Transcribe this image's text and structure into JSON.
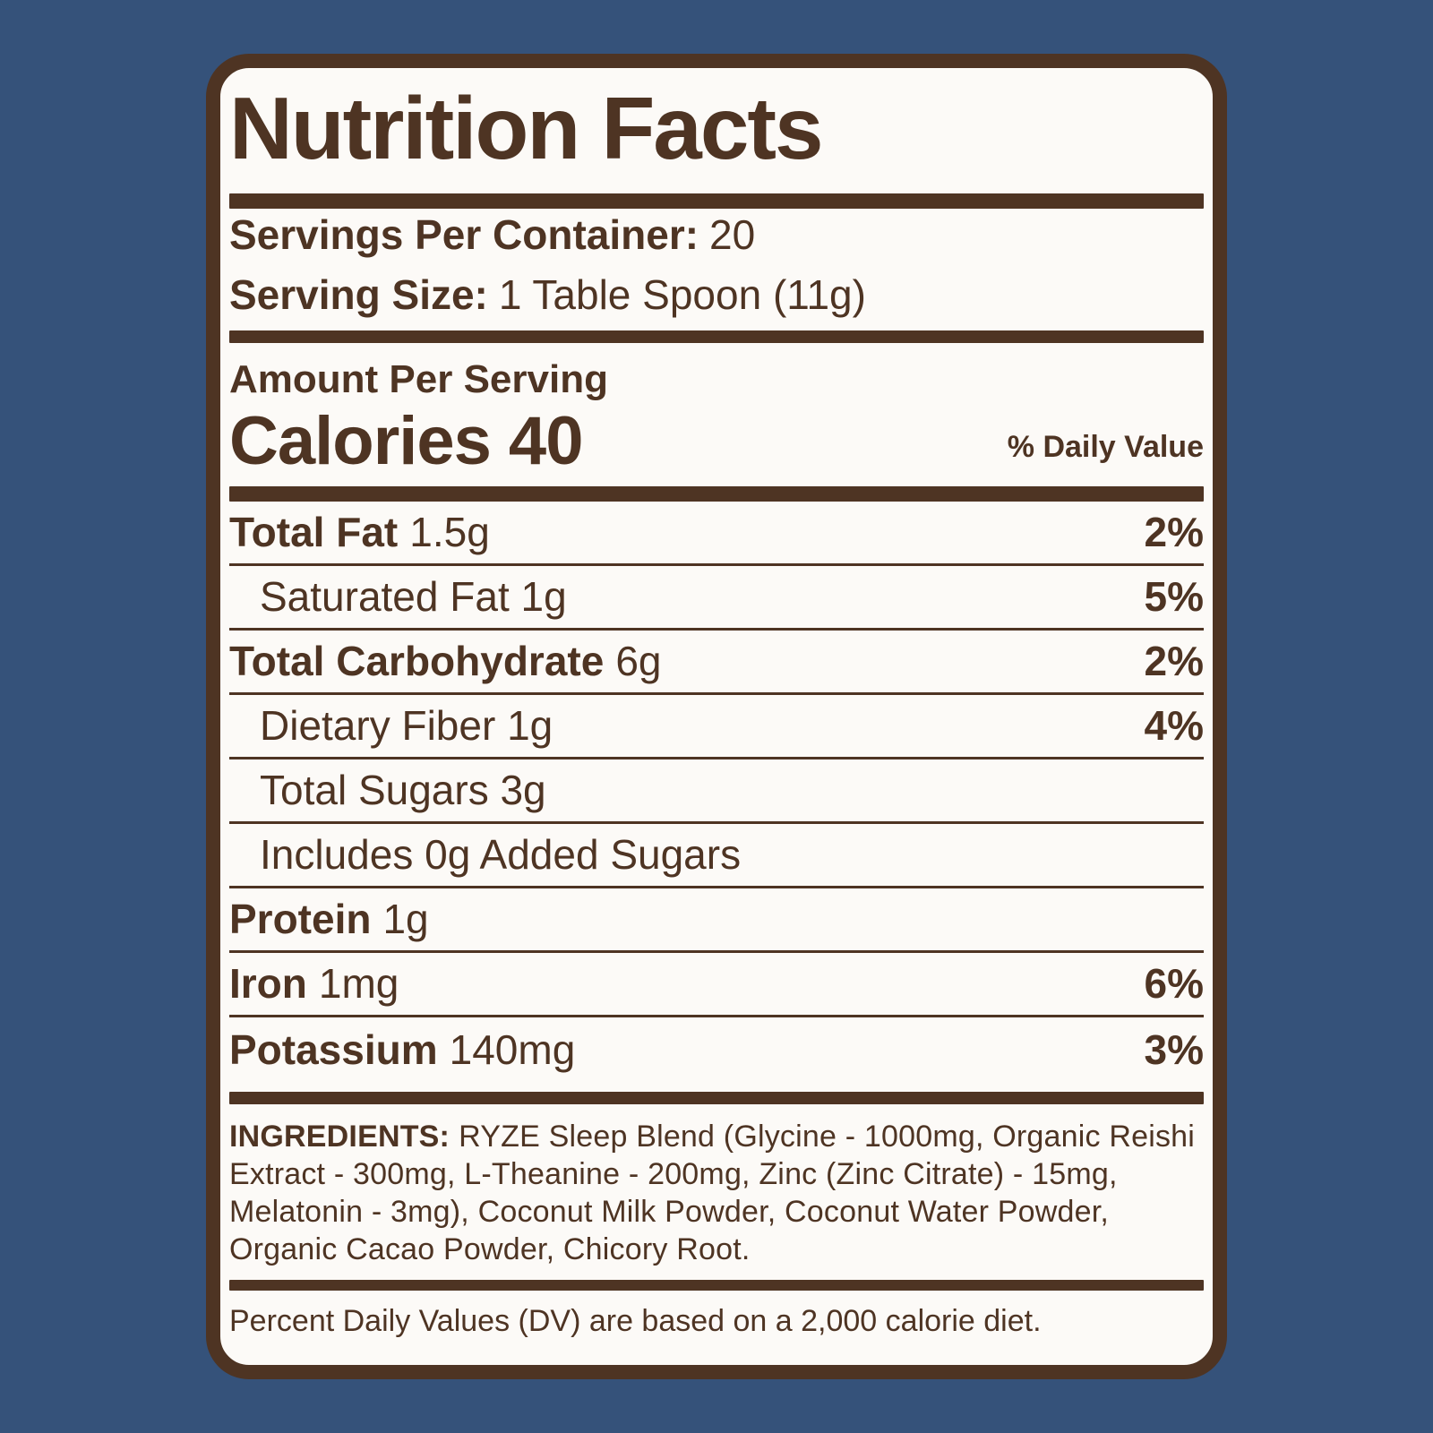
{
  "colors": {
    "background": "#35527A",
    "label_bg": "#FCFAF7",
    "brown": "#4E3423"
  },
  "label": {
    "title": "Nutrition Facts",
    "servings_per_container_label": "Servings Per Container:",
    "servings_per_container_value": "20",
    "serving_size_label": "Serving Size:",
    "serving_size_value": "1 Table Spoon (11g)",
    "amount_per_serving": "Amount Per Serving",
    "calories_label": "Calories",
    "calories_value": "40",
    "daily_value_header": "% Daily Value",
    "rows": [
      {
        "bold": "Total Fat",
        "rest": "1.5g",
        "pct": "2%"
      },
      {
        "bold": "",
        "rest": "Saturated Fat 1g",
        "pct": "5%"
      },
      {
        "bold": "Total Carbohydrate",
        "rest": "6g",
        "pct": "2%"
      },
      {
        "bold": "",
        "rest": "Dietary Fiber 1g",
        "pct": "4%"
      },
      {
        "bold": "",
        "rest": "Total Sugars 3g",
        "pct": ""
      },
      {
        "bold": "",
        "rest": "Includes 0g Added Sugars",
        "pct": ""
      },
      {
        "bold": "Protein",
        "rest": "1g",
        "pct": ""
      },
      {
        "bold": "Iron",
        "rest": "1mg",
        "pct": "6%"
      },
      {
        "bold": "Potassium",
        "rest": "140mg",
        "pct": "3%"
      }
    ],
    "ingredients_label": "INGREDIENTS:",
    "ingredients_text": "RYZE Sleep Blend (Glycine - 1000mg, Organic Reishi Extract - 300mg, L-Theanine - 200mg, Zinc (Zinc Citrate) - 15mg, Melatonin - 3mg), Coconut Milk Powder, Coconut Water Powder, Organic Cacao Powder, Chicory Root.",
    "footnote": "Percent Daily Values (DV) are based on a 2,000 calorie diet."
  }
}
